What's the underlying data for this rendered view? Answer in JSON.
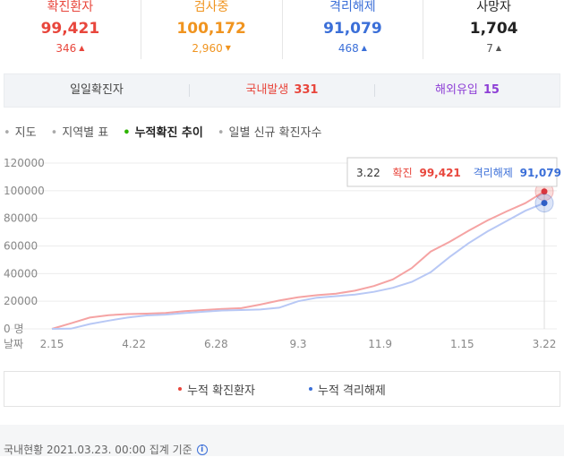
{
  "stats": [
    {
      "label": "확진환자",
      "value": "99,421",
      "delta": "346",
      "dir": "up",
      "color": "#e8463c",
      "arrow_color": "#e8463c"
    },
    {
      "label": "검사중",
      "value": "100,172",
      "delta": "2,960",
      "dir": "down",
      "color": "#f0941f",
      "arrow_color": "#f0941f"
    },
    {
      "label": "격리해제",
      "value": "91,079",
      "delta": "468",
      "dir": "up",
      "color": "#3b6fd8",
      "arrow_color": "#3b6fd8"
    },
    {
      "label": "사망자",
      "value": "1,704",
      "delta": "7",
      "dir": "up",
      "color": "#222222",
      "arrow_color": "#555555"
    }
  ],
  "daily": {
    "label": "일일확진자",
    "domestic_label": "국내발생",
    "domestic_value": "331",
    "overseas_label": "해외유입",
    "overseas_value": "15"
  },
  "tabs": [
    {
      "label": "지도",
      "active": false
    },
    {
      "label": "지역별 표",
      "active": false
    },
    {
      "label": "누적확진 추이",
      "active": true
    },
    {
      "label": "일별 신규 확진자수",
      "active": false
    }
  ],
  "tooltip": {
    "date": "3.22",
    "confirmed_label": "확진",
    "confirmed_value": "99,421",
    "released_label": "격리해제",
    "released_value": "91,079"
  },
  "legend": {
    "confirmed": "누적 확진환자",
    "released": "누적 격리해제"
  },
  "footer": {
    "text": "국내현황 2021.03.23. 00:00 집계 기준"
  },
  "colors": {
    "confirmed_line": "#f5a3a3",
    "released_line": "#b8c8f5",
    "confirmed_marker": "#d9363e",
    "released_marker": "#2f5fc6"
  },
  "chart_data": {
    "type": "line",
    "xlabel": "날짜",
    "ylabel": "",
    "y_unit_label": "명",
    "ylim": [
      0,
      120000
    ],
    "yticks": [
      0,
      20000,
      40000,
      60000,
      80000,
      100000,
      120000
    ],
    "x_tick_labels": [
      "2.15",
      "4.22",
      "6.28",
      "9.3",
      "11.9",
      "1.15",
      "3.22"
    ],
    "grid": "horizontal",
    "x": [
      "2.15",
      "3.1",
      "3.15",
      "4.1",
      "4.22",
      "5.15",
      "6.1",
      "6.28",
      "7.15",
      "8.1",
      "8.15",
      "8.25",
      "9.3",
      "9.20",
      "10.5",
      "10.20",
      "11.9",
      "11.25",
      "12.5",
      "12.15",
      "12.25",
      "1.1",
      "1.15",
      "2.1",
      "2.15",
      "3.1",
      "3.22"
    ],
    "series": [
      {
        "name": "누적 확진환자",
        "values": [
          30,
          4000,
          8200,
          9900,
          10700,
          11000,
          11500,
          12800,
          13600,
          14400,
          15000,
          17600,
          20500,
          22800,
          24400,
          25500,
          27600,
          31000,
          35800,
          44000,
          56000,
          63000,
          71000,
          78500,
          85000,
          91000,
          99421
        ]
      },
      {
        "name": "누적 격리해제",
        "values": [
          0,
          100,
          3500,
          6000,
          8200,
          9700,
          10300,
          11400,
          12400,
          13300,
          13600,
          14000,
          15300,
          20000,
          22600,
          23700,
          24800,
          26800,
          29700,
          34000,
          41000,
          52000,
          62000,
          70500,
          78000,
          85500,
          91079
        ]
      }
    ]
  }
}
